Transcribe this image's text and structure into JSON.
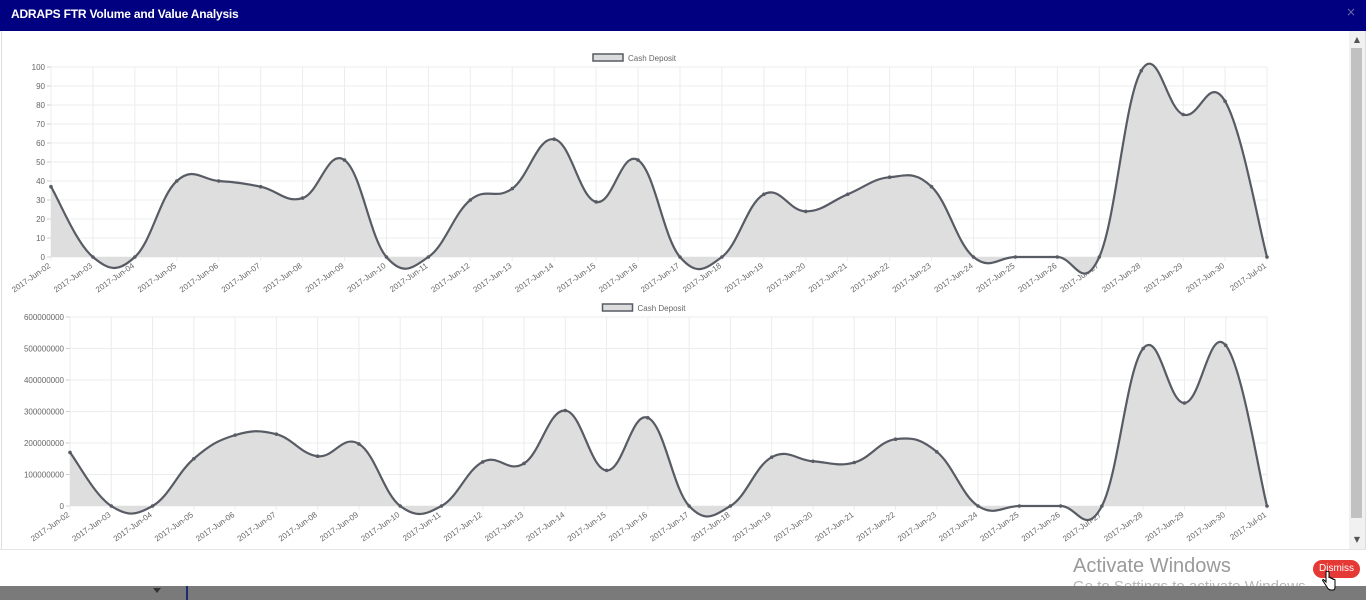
{
  "modal": {
    "title": "ADRAPS FTR Volume and Value Analysis",
    "close_label": "×"
  },
  "footer": {
    "activate_title": "Activate Windows",
    "activate_subtitle": "Go to Settings to activate Windows.",
    "dismiss_label": "Dismiss"
  },
  "colors": {
    "titlebar": "#000080",
    "line": "#575b63",
    "fill": "#dcdcdc",
    "grid": "#ececec",
    "dismiss": "#e53935"
  },
  "chart_data": [
    {
      "type": "area",
      "legend": "Cash Deposit",
      "legend_position": "top-center",
      "grid": true,
      "ylim": [
        0,
        100
      ],
      "yticks": [
        0,
        10,
        20,
        30,
        40,
        50,
        60,
        70,
        80,
        90,
        100
      ],
      "categories": [
        "2017-Jun-02",
        "2017-Jun-03",
        "2017-Jun-04",
        "2017-Jun-05",
        "2017-Jun-06",
        "2017-Jun-07",
        "2017-Jun-08",
        "2017-Jun-09",
        "2017-Jun-10",
        "2017-Jun-11",
        "2017-Jun-12",
        "2017-Jun-13",
        "2017-Jun-14",
        "2017-Jun-15",
        "2017-Jun-16",
        "2017-Jun-17",
        "2017-Jun-18",
        "2017-Jun-19",
        "2017-Jun-20",
        "2017-Jun-21",
        "2017-Jun-22",
        "2017-Jun-23",
        "2017-Jun-24",
        "2017-Jun-25",
        "2017-Jun-26",
        "2017-Jun-27",
        "2017-Jun-28",
        "2017-Jun-29",
        "2017-Jun-30",
        "2017-Jul-01"
      ],
      "values": [
        37,
        0,
        0,
        40,
        40,
        37,
        31,
        51,
        0,
        0,
        30,
        36,
        62,
        29,
        51,
        0,
        0,
        33,
        24,
        33,
        42,
        37,
        0,
        0,
        0,
        0,
        98,
        75,
        82,
        0
      ]
    },
    {
      "type": "area",
      "legend": "Cash Deposit",
      "legend_position": "top-center",
      "grid": true,
      "ylim": [
        0,
        600000000
      ],
      "yticks": [
        0,
        100000000,
        200000000,
        300000000,
        400000000,
        500000000,
        600000000
      ],
      "categories": [
        "2017-Jun-02",
        "2017-Jun-03",
        "2017-Jun-04",
        "2017-Jun-05",
        "2017-Jun-06",
        "2017-Jun-07",
        "2017-Jun-08",
        "2017-Jun-09",
        "2017-Jun-10",
        "2017-Jun-11",
        "2017-Jun-12",
        "2017-Jun-13",
        "2017-Jun-14",
        "2017-Jun-15",
        "2017-Jun-16",
        "2017-Jun-17",
        "2017-Jun-18",
        "2017-Jun-19",
        "2017-Jun-20",
        "2017-Jun-21",
        "2017-Jun-22",
        "2017-Jun-23",
        "2017-Jun-24",
        "2017-Jun-25",
        "2017-Jun-26",
        "2017-Jun-27",
        "2017-Jun-28",
        "2017-Jun-29",
        "2017-Jun-30",
        "2017-Jul-01"
      ],
      "values": [
        170000000,
        0,
        0,
        150000000,
        225000000,
        228000000,
        158000000,
        197000000,
        0,
        0,
        140000000,
        135000000,
        303000000,
        113000000,
        280000000,
        0,
        0,
        155000000,
        142000000,
        138000000,
        212000000,
        172000000,
        0,
        0,
        0,
        0,
        500000000,
        327000000,
        510000000,
        0
      ]
    }
  ]
}
